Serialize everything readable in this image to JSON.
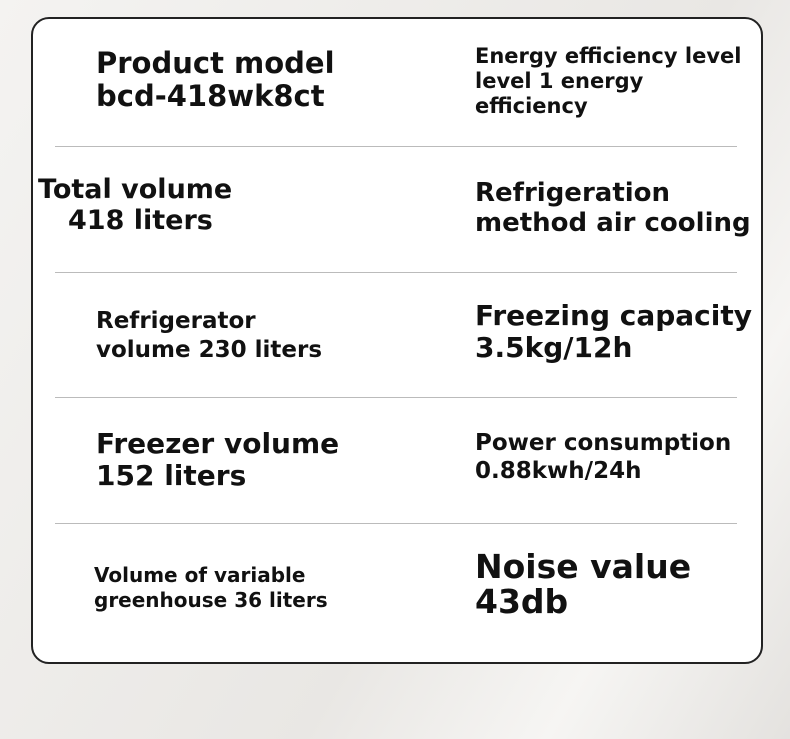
{
  "specs": {
    "product_model": [
      "Product model",
      "bcd-418wk8ct"
    ],
    "energy": [
      "Energy efficiency level",
      "level 1 energy",
      "efficiency"
    ],
    "total_volume": [
      "Total volume",
      "418 liters"
    ],
    "refrigeration": [
      "Refrigeration",
      "method air cooling"
    ],
    "fridge_volume": [
      "Refrigerator",
      "volume 230 liters"
    ],
    "freezing": [
      "Freezing capacity",
      "3.5kg/12h"
    ],
    "freezer_volume": [
      "Freezer volume",
      "152 liters"
    ],
    "power": [
      "Power consumption",
      "0.88kwh/24h"
    ],
    "greenhouse": [
      "Volume of variable",
      "greenhouse 36 liters"
    ],
    "noise": [
      "Noise value",
      "43db"
    ]
  }
}
